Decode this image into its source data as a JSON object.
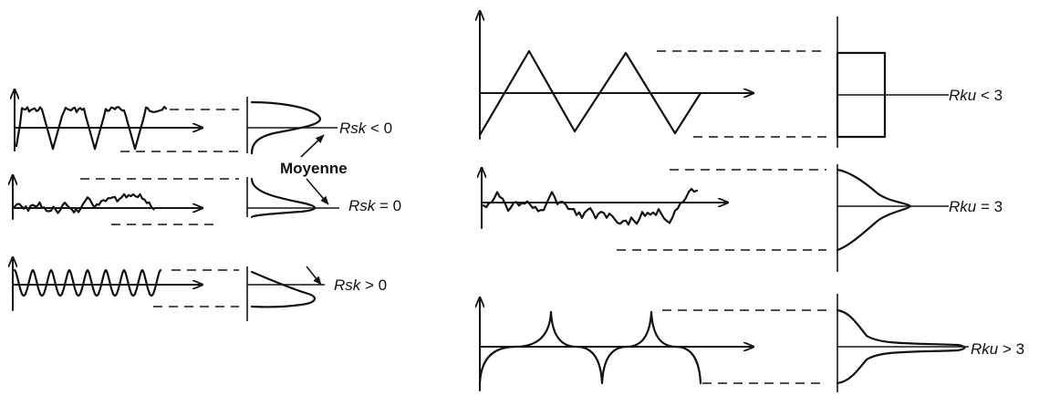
{
  "left_panel": {
    "labels": {
      "negative": {
        "param": "Rsk",
        "relation": "< 0"
      },
      "zero": {
        "param": "Rsk",
        "relation": "= 0"
      },
      "positive": {
        "param": "Rsk",
        "relation": "> 0"
      },
      "mean_annotation": "Moyenne"
    }
  },
  "right_panel": {
    "labels": {
      "low": {
        "param": "Rku",
        "relation": "< 3"
      },
      "normal": {
        "param": "Rku",
        "relation": "=  3"
      },
      "high": {
        "param": "Rku",
        "relation": "> 3"
      }
    }
  },
  "colors": {
    "ink": "#141414",
    "background": "#ffffff"
  }
}
